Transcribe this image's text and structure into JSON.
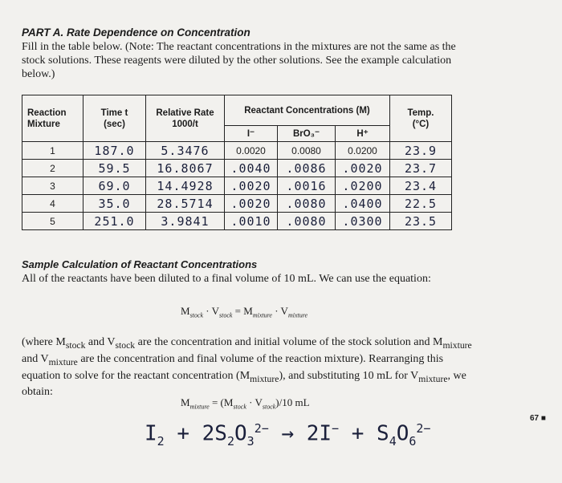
{
  "heading": "PART A. Rate Dependence on Concentration",
  "intro": "Fill in the table below. (Note: The reactant concentrations in the mixtures are not the same as the stock solutions. These reagents were diluted by the other solutions. See the example calculation below.)",
  "table": {
    "headers": {
      "mixture": [
        "Reaction",
        "Mixture"
      ],
      "time": [
        "Time t",
        "(sec)"
      ],
      "rate": [
        "Relative Rate",
        "1000/t"
      ],
      "conc": "Reactant Concentrations (M)",
      "temp": [
        "Temp.",
        "(°C)"
      ]
    },
    "subheaders": [
      "I⁻",
      "BrO₃⁻",
      "H⁺"
    ],
    "rows": [
      [
        "1",
        "187.0",
        "5.3476",
        "0.0020",
        "0.0080",
        "0.0200",
        "23.9"
      ],
      [
        "2",
        "59.5",
        "16.8067",
        ".0040",
        ".0086",
        ".0020",
        "23.7"
      ],
      [
        "3",
        "69.0",
        "14.4928",
        ".0020",
        ".0016",
        ".0200",
        "23.4"
      ],
      [
        "4",
        "35.0",
        "28.5714",
        ".0020",
        ".0080",
        ".0400",
        "22.5"
      ],
      [
        "5",
        "251.0",
        "3.9841",
        ".0010",
        ".0080",
        ".0300",
        "23.5"
      ]
    ]
  },
  "sample": {
    "heading": "Sample Calculation of Reactant Concentrations",
    "text": "All of the reactants have been diluted to a final volume of 10 mL. We can use the equation:",
    "equation1": [
      {
        "text": "M"
      },
      {
        "sub": "stock"
      },
      {
        "text": " · V"
      },
      {
        "sub": "stock"
      },
      {
        "text": " = M"
      },
      {
        "sub": "mixture"
      },
      {
        "text": " · V"
      },
      {
        "sub": "mixture"
      }
    ],
    "paragraph": [
      {
        "text": "(where M"
      },
      {
        "sub": "stock"
      },
      {
        "text": " and V"
      },
      {
        "sub": "stock"
      },
      {
        "text": " are the concentration and initial volume of the stock solution and M"
      },
      {
        "sub": "mixture"
      },
      {
        "text": " and V"
      },
      {
        "sub": "mixture"
      },
      {
        "text": " are the concentration and final volume of the reaction mixture). Rearranging this equation to solve for the reactant concentration (M"
      },
      {
        "sub": "mixture"
      },
      {
        "text": "), and substituting 10 mL for V"
      },
      {
        "sub": "mixture"
      },
      {
        "text": ", we obtain:"
      }
    ],
    "equation2": [
      {
        "text": "M"
      },
      {
        "sub": "mixture"
      },
      {
        "text": " = (M"
      },
      {
        "sub": "stock"
      },
      {
        "text": " · V"
      },
      {
        "sub": "stock"
      },
      {
        "text": ")/10 mL"
      }
    ],
    "handwritten": [
      {
        "text": "I"
      },
      {
        "sub": "2"
      },
      {
        "text": " + 2S"
      },
      {
        "sub": "2"
      },
      {
        "text": "O"
      },
      {
        "sub": "3"
      },
      {
        "sup": "2−"
      },
      {
        "text": " → 2I"
      },
      {
        "sup": "−"
      },
      {
        "text": " + S"
      },
      {
        "sub": "4"
      },
      {
        "text": "O"
      },
      {
        "sub": "6"
      },
      {
        "sup": "2−"
      }
    ]
  },
  "page_number": "67"
}
